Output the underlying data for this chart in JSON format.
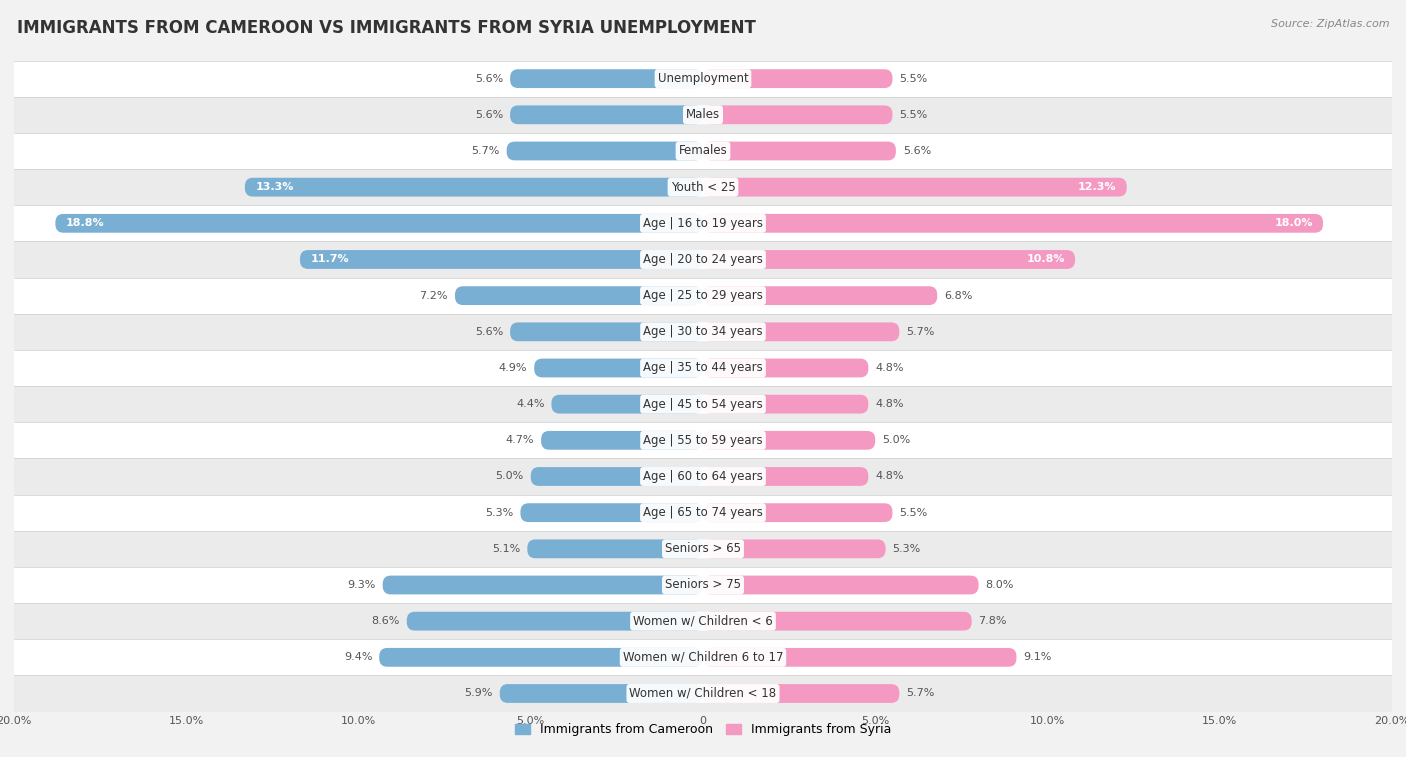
{
  "title": "IMMIGRANTS FROM CAMEROON VS IMMIGRANTS FROM SYRIA UNEMPLOYMENT",
  "source": "Source: ZipAtlas.com",
  "categories": [
    "Unemployment",
    "Males",
    "Females",
    "Youth < 25",
    "Age | 16 to 19 years",
    "Age | 20 to 24 years",
    "Age | 25 to 29 years",
    "Age | 30 to 34 years",
    "Age | 35 to 44 years",
    "Age | 45 to 54 years",
    "Age | 55 to 59 years",
    "Age | 60 to 64 years",
    "Age | 65 to 74 years",
    "Seniors > 65",
    "Seniors > 75",
    "Women w/ Children < 6",
    "Women w/ Children 6 to 17",
    "Women w/ Children < 18"
  ],
  "cameroon_values": [
    5.6,
    5.6,
    5.7,
    13.3,
    18.8,
    11.7,
    7.2,
    5.6,
    4.9,
    4.4,
    4.7,
    5.0,
    5.3,
    5.1,
    9.3,
    8.6,
    9.4,
    5.9
  ],
  "syria_values": [
    5.5,
    5.5,
    5.6,
    12.3,
    18.0,
    10.8,
    6.8,
    5.7,
    4.8,
    4.8,
    5.0,
    4.8,
    5.5,
    5.3,
    8.0,
    7.8,
    9.1,
    5.7
  ],
  "cameroon_color": "#7aafd4",
  "syria_color": "#f49ac2",
  "axis_limit": 20.0,
  "bg_light": "#f2f2f2",
  "bg_dark": "#e8e8e8",
  "bar_row_white": "#ffffff",
  "bar_row_gray": "#ebebeb",
  "legend_cameroon": "Immigrants from Cameroon",
  "legend_syria": "Immigrants from Syria",
  "title_fontsize": 12,
  "label_fontsize": 8.5,
  "value_fontsize": 8.0,
  "value_inside_threshold": 10.0
}
